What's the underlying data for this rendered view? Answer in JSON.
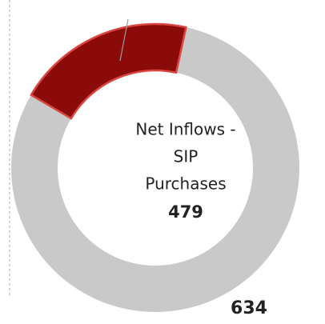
{
  "chart_data": {
    "type": "donut",
    "values": [
      158,
      634
    ],
    "colors": [
      "#8b0a0a",
      "#c9c9c9"
    ],
    "center_label_lines": [
      "Net Inflows -",
      "SIP",
      "Purchases"
    ],
    "center_value": 479
  }
}
